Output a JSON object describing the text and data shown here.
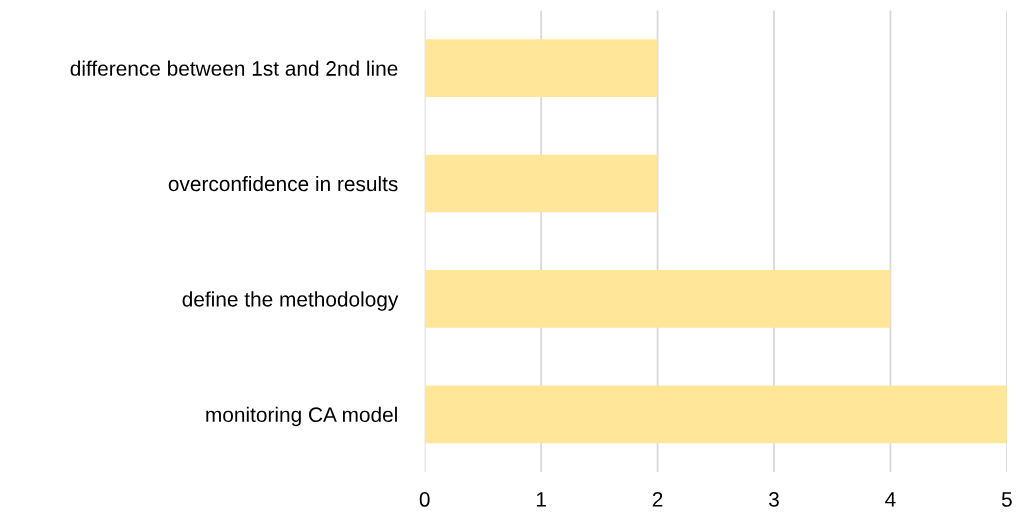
{
  "chart_data": {
    "type": "bar",
    "orientation": "horizontal",
    "categories": [
      "difference between 1st and 2nd line",
      "overconfidence in results",
      "define the methodology",
      "monitoring CA model"
    ],
    "values": [
      2,
      2,
      4,
      5
    ],
    "color": "#ffe699",
    "xlim": [
      0,
      5
    ],
    "xticks": [
      0,
      1,
      2,
      3,
      4,
      5
    ],
    "grid": "x",
    "legend": false
  }
}
